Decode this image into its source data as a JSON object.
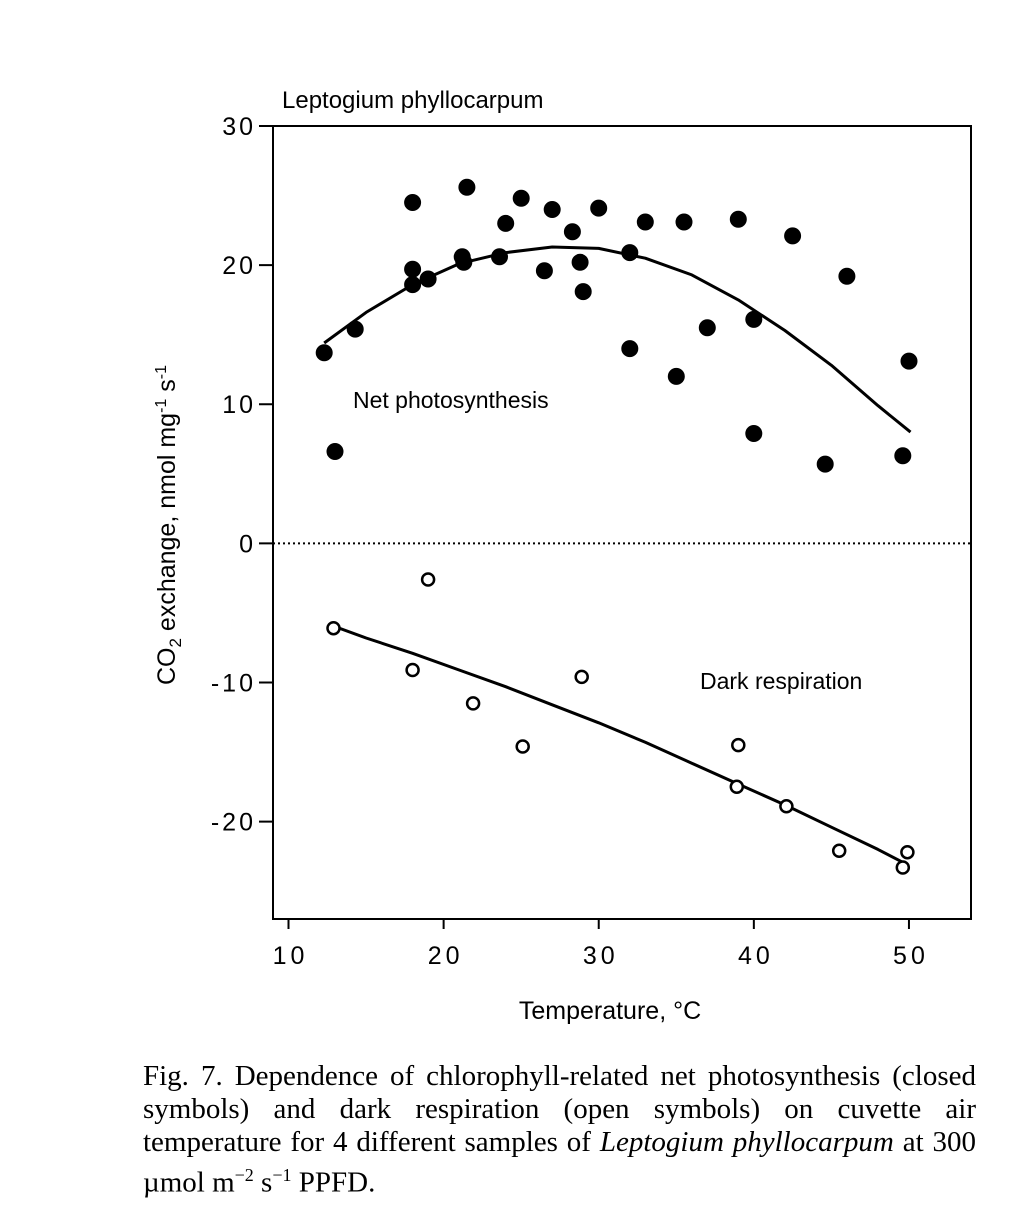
{
  "chart_data": {
    "type": "scatter",
    "title": "Leptogium phyllocarpum",
    "xlabel": "Temperature, °C",
    "ylabel": {
      "prefix": "CO",
      "sub": "2",
      "rest": " exchange, nmol mg",
      "sup1": "-1",
      "mid": " s",
      "sup2": "-1"
    },
    "xlim": [
      9,
      54
    ],
    "ylim": [
      -27,
      30
    ],
    "x_ticks": [
      10,
      20,
      30,
      40,
      50
    ],
    "y_ticks": [
      30,
      20,
      10,
      0,
      -10,
      -20
    ],
    "x_tick_labels": [
      "10",
      "20",
      "30",
      "40",
      "50"
    ],
    "y_tick_labels": [
      "30",
      "20",
      "10",
      "0",
      "-10",
      "-20"
    ],
    "annotations": [
      "Net photosynthesis",
      "Dark respiration"
    ],
    "zero_line": {
      "y": 0,
      "style": "dotted"
    },
    "series": [
      {
        "marker": "filled-circle",
        "x": [
          12.3,
          13.0,
          14.3,
          18.0,
          18.0,
          18.0,
          19.0,
          21.2,
          21.3,
          21.5,
          23.6,
          24.0,
          25.0,
          26.5,
          27.0,
          28.3,
          28.8,
          29.0,
          30.0,
          32.0,
          32.0,
          33.0,
          35.0,
          35.5,
          37.0,
          39.0,
          40.0,
          40.0,
          42.5,
          44.6,
          46.0,
          49.6,
          50.0
        ],
        "y": [
          13.7,
          6.6,
          15.4,
          24.5,
          19.7,
          18.6,
          19.0,
          20.6,
          20.2,
          25.6,
          20.6,
          23.0,
          24.8,
          19.6,
          24.0,
          22.4,
          20.2,
          18.1,
          24.1,
          20.9,
          14.0,
          23.1,
          12.0,
          23.1,
          15.5,
          23.3,
          16.1,
          7.9,
          22.1,
          5.7,
          19.2,
          6.3,
          13.1
        ]
      },
      {
        "marker": "open-circle",
        "x": [
          12.9,
          18.0,
          19.0,
          21.9,
          25.1,
          28.9,
          38.9,
          39.0,
          42.1,
          45.5,
          49.6,
          49.9
        ],
        "y": [
          -6.1,
          -9.1,
          -2.6,
          -11.5,
          -14.6,
          -9.6,
          -17.5,
          -14.5,
          -18.9,
          -22.1,
          -23.3,
          -22.2
        ]
      }
    ],
    "fit_curves": [
      {
        "x": [
          12.3,
          15,
          18,
          21,
          24,
          27,
          30,
          33,
          36,
          39,
          42,
          45,
          48,
          50.1
        ],
        "y": [
          14.4,
          16.6,
          18.6,
          20.1,
          20.9,
          21.3,
          21.2,
          20.5,
          19.3,
          17.5,
          15.3,
          12.8,
          9.9,
          8.0
        ]
      },
      {
        "x": [
          12.8,
          15,
          18,
          21,
          24,
          27,
          30,
          33,
          36,
          39,
          42,
          45,
          48,
          49.9
        ],
        "y": [
          -5.9,
          -6.8,
          -7.9,
          -9.1,
          -10.3,
          -11.6,
          -12.9,
          -14.3,
          -15.8,
          -17.3,
          -18.8,
          -20.4,
          -22.0,
          -23.1
        ]
      }
    ]
  },
  "caption": {
    "p1": "Fig. 7. Dependence of chlorophyll-related net photosynthesis (closed symbols) and dark respiration (open symbols) on cuvette air temperature for 4 different samples of ",
    "species": "Leptogium phyllocarpum",
    "p2": " at 300 µmol m",
    "sup1": "−2",
    "p3": " s",
    "sup2": "−1",
    "p4": " PPFD."
  }
}
